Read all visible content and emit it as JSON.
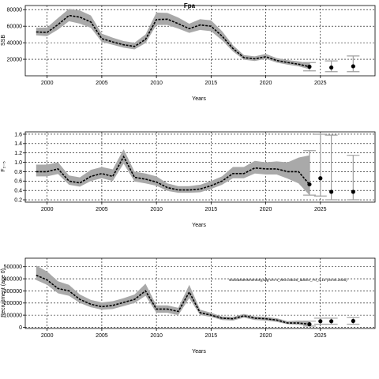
{
  "chart_data": [
    {
      "type": "line",
      "title": "Fpa",
      "xlabel": "Years",
      "ylabel": "SSB",
      "xlim": [
        1998,
        2030
      ],
      "ylim": [
        0,
        85000
      ],
      "x_ticks": [
        "2000",
        "2005",
        "2010",
        "2015",
        "2020",
        "2025"
      ],
      "y_ticks": [
        "20000",
        "40000",
        "60000",
        "80000"
      ],
      "y_tick_values": [
        20000,
        40000,
        60000,
        80000
      ],
      "grid": true,
      "series": [
        {
          "x": [
            1999,
            2000,
            2001,
            2002,
            2003,
            2004,
            2005,
            2006,
            2007,
            2008,
            2009,
            2010,
            2011,
            2012,
            2013,
            2014,
            2015,
            2016,
            2017,
            2018,
            2019,
            2020,
            2021,
            2022,
            2023,
            2024
          ],
          "values": [
            53000,
            52500,
            62000,
            73000,
            71000,
            65000,
            45000,
            41000,
            37500,
            35500,
            44000,
            68000,
            68500,
            63000,
            57000,
            61500,
            60000,
            48000,
            33000,
            22000,
            20500,
            23000,
            18500,
            16000,
            14000,
            11000
          ],
          "lower": [
            49000,
            48000,
            56000,
            66000,
            63000,
            58000,
            41000,
            37500,
            34000,
            32000,
            39500,
            61500,
            61500,
            57000,
            52000,
            55500,
            54000,
            43000,
            29500,
            19500,
            18000,
            20500,
            16000,
            13500,
            11500,
            8000
          ],
          "upper": [
            58000,
            58500,
            70000,
            81000,
            79000,
            73000,
            51000,
            46000,
            42000,
            40000,
            50000,
            76500,
            76000,
            70500,
            63000,
            68500,
            67000,
            54000,
            37000,
            25000,
            23500,
            26500,
            21500,
            19000,
            17500,
            15000
          ]
        }
      ],
      "projection": {
        "x": [
          2024,
          2026,
          2028
        ],
        "values": [
          11000,
          10000,
          11500
        ],
        "lower": [
          6000,
          5000,
          5000
        ],
        "upper": [
          16000,
          18000,
          24000
        ]
      }
    },
    {
      "type": "line",
      "title": "",
      "xlabel": "Years",
      "ylabel": "F₂₋₅",
      "xlim": [
        1998,
        2030
      ],
      "ylim": [
        0.15,
        1.65
      ],
      "x_ticks": [
        "2000",
        "2005",
        "2010",
        "2015",
        "2020",
        "2025"
      ],
      "y_ticks": [
        "0.2",
        "0.4",
        "0.6",
        "0.8",
        "1.0",
        "1.2",
        "1.4",
        "1.6"
      ],
      "y_tick_values": [
        0.2,
        0.4,
        0.6,
        0.8,
        1.0,
        1.2,
        1.4,
        1.6
      ],
      "grid": true,
      "series": [
        {
          "x": [
            1999,
            2000,
            2001,
            2002,
            2003,
            2004,
            2005,
            2006,
            2007,
            2008,
            2009,
            2010,
            2011,
            2012,
            2013,
            2014,
            2015,
            2016,
            2017,
            2018,
            2019,
            2020,
            2021,
            2022,
            2023,
            2024
          ],
          "values": [
            0.8,
            0.8,
            0.86,
            0.6,
            0.56,
            0.7,
            0.76,
            0.7,
            1.12,
            0.68,
            0.64,
            0.58,
            0.46,
            0.41,
            0.41,
            0.43,
            0.5,
            0.6,
            0.76,
            0.76,
            0.88,
            0.86,
            0.86,
            0.8,
            0.8,
            0.53
          ],
          "lower": [
            0.7,
            0.7,
            0.75,
            0.52,
            0.48,
            0.6,
            0.66,
            0.6,
            0.97,
            0.59,
            0.55,
            0.5,
            0.39,
            0.35,
            0.35,
            0.36,
            0.43,
            0.52,
            0.66,
            0.66,
            0.76,
            0.74,
            0.74,
            0.65,
            0.55,
            0.3
          ],
          "upper": [
            0.95,
            0.95,
            1.0,
            0.72,
            0.68,
            0.84,
            0.9,
            0.85,
            1.28,
            0.8,
            0.76,
            0.7,
            0.55,
            0.49,
            0.49,
            0.52,
            0.6,
            0.7,
            0.9,
            0.9,
            1.03,
            1.0,
            1.02,
            1.0,
            1.1,
            1.15
          ]
        }
      ],
      "projection": {
        "x": [
          2024,
          2026,
          2028
        ],
        "values": [
          0.53,
          0.37,
          0.37
        ],
        "lower": [
          0.3,
          0.2,
          0.2
        ],
        "upper": [
          1.25,
          1.58,
          1.15
        ]
      },
      "projection_extra": {
        "x": 2025,
        "value": 0.66,
        "lower": 0.28,
        "upper": 1.6
      }
    },
    {
      "type": "line",
      "title": "",
      "xlabel": "Years",
      "ylabel": "Recruitment (age 0)",
      "xlim": [
        1998,
        2030
      ],
      "ylim": [
        -10000,
        570000
      ],
      "x_ticks": [
        "2000",
        "2005",
        "2010",
        "2015",
        "2020",
        "2025"
      ],
      "y_ticks": [
        "0",
        "100000",
        "200000",
        "300000",
        "400000",
        "500000"
      ],
      "y_tick_values": [
        0,
        100000,
        200000,
        300000,
        400000,
        500000
      ],
      "grid": true,
      "annotation": "stockassessmentorg,wfg-cm-4_WGCSE25_advice_F0_0.13 (04.04.2025)",
      "series": [
        {
          "x": [
            1999,
            2000,
            2001,
            2002,
            2003,
            2004,
            2005,
            2006,
            2007,
            2008,
            2009,
            2010,
            2011,
            2012,
            2013,
            2014,
            2015,
            2016,
            2017,
            2018,
            2019,
            2020,
            2021,
            2022,
            2023,
            2024
          ],
          "values": [
            430000,
            390000,
            320000,
            300000,
            230000,
            190000,
            170000,
            180000,
            205000,
            230000,
            300000,
            150000,
            150000,
            130000,
            290000,
            120000,
            100000,
            75000,
            70000,
            95000,
            75000,
            70000,
            60000,
            35000,
            35000,
            25000
          ],
          "lower": [
            390000,
            350000,
            280000,
            260000,
            200000,
            165000,
            145000,
            150000,
            175000,
            200000,
            260000,
            120000,
            120000,
            100000,
            240000,
            100000,
            85000,
            60000,
            55000,
            80000,
            60000,
            55000,
            45000,
            25000,
            20000,
            10000
          ],
          "upper": [
            510000,
            460000,
            380000,
            350000,
            270000,
            225000,
            205000,
            215000,
            240000,
            270000,
            360000,
            180000,
            180000,
            160000,
            350000,
            145000,
            120000,
            90000,
            85000,
            110000,
            90000,
            85000,
            75000,
            50000,
            55000,
            50000
          ]
        }
      ],
      "projection": {
        "x": [
          2024,
          2026,
          2028
        ],
        "values": [
          25000,
          50000,
          52000
        ],
        "lower": [
          10000,
          25000,
          25000
        ],
        "upper": [
          50000,
          75000,
          80000
        ]
      },
      "projection_extra": {
        "x": 2025,
        "value": 50000,
        "lower": 25000,
        "upper": 75000
      }
    }
  ]
}
